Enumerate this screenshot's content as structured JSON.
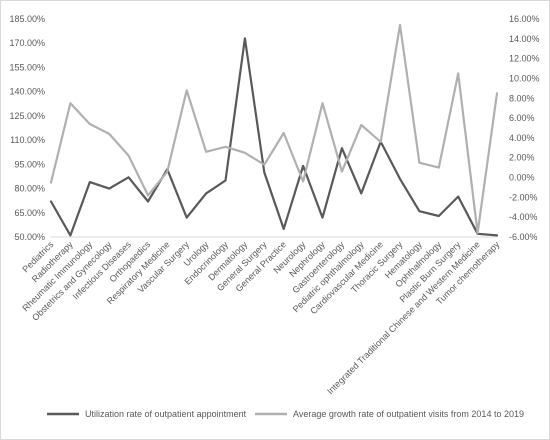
{
  "chart_data": {
    "type": "line",
    "categories": [
      "Pediatrics",
      "Radiotherapy",
      "Rheumatic Immunology",
      "Obstetrics and Gynecology",
      "Infectious Diseases",
      "Orthopaedics",
      "Respiratory Medicine",
      "Vascular Surgery",
      "Urology",
      "Endocrinology",
      "Dermatology",
      "General Surgery",
      "General Practice",
      "Neurology",
      "Nephrology",
      "Gastroenterology",
      "Pediatric ophthalmology",
      "Cardiovascular Medicine",
      "Thoracic Surgery",
      "Hematology",
      "Ophthalmology",
      "Plastic Burn Surgery",
      "Integrated Traditional Chinese and Western Medicine",
      "Tumor chemotherapy"
    ],
    "y_left": {
      "ticks": [
        "50.00%",
        "65.00%",
        "80.00%",
        "95.00%",
        "110.00%",
        "125.00%",
        "140.00%",
        "155.00%",
        "170.00%",
        "185.00%"
      ],
      "min": 50,
      "max": 185,
      "step": 15
    },
    "y_right": {
      "ticks": [
        "-6.00%",
        "-4.00%",
        "-2.00%",
        "0.00%",
        "2.00%",
        "4.00%",
        "6.00%",
        "8.00%",
        "10.00%",
        "12.00%",
        "14.00%",
        "16.00%"
      ],
      "min": -6,
      "max": 16,
      "step": 2
    },
    "series": [
      {
        "name": "Utilization rate of outpatient appointment",
        "axis": "left",
        "color": "#595959",
        "values": [
          72,
          51,
          84,
          80,
          87,
          72,
          92,
          62,
          77,
          85,
          173,
          90,
          55,
          94,
          62,
          105,
          77,
          109,
          86,
          66,
          63,
          75,
          52,
          51
        ]
      },
      {
        "name": "Average growth rate of outpatient visits from 2014 to 2019",
        "axis": "right",
        "color": "#b0b0b0",
        "values": [
          -0.5,
          7.5,
          5.4,
          4.4,
          2.2,
          -1.8,
          0.6,
          8.8,
          2.6,
          3.1,
          2.5,
          1.3,
          4.5,
          -0.4,
          7.5,
          0.6,
          5.3,
          3.6,
          15.4,
          1.5,
          1.0,
          10.5,
          -5.6,
          8.5
        ]
      }
    ],
    "legend_position": "bottom",
    "grid": false
  }
}
